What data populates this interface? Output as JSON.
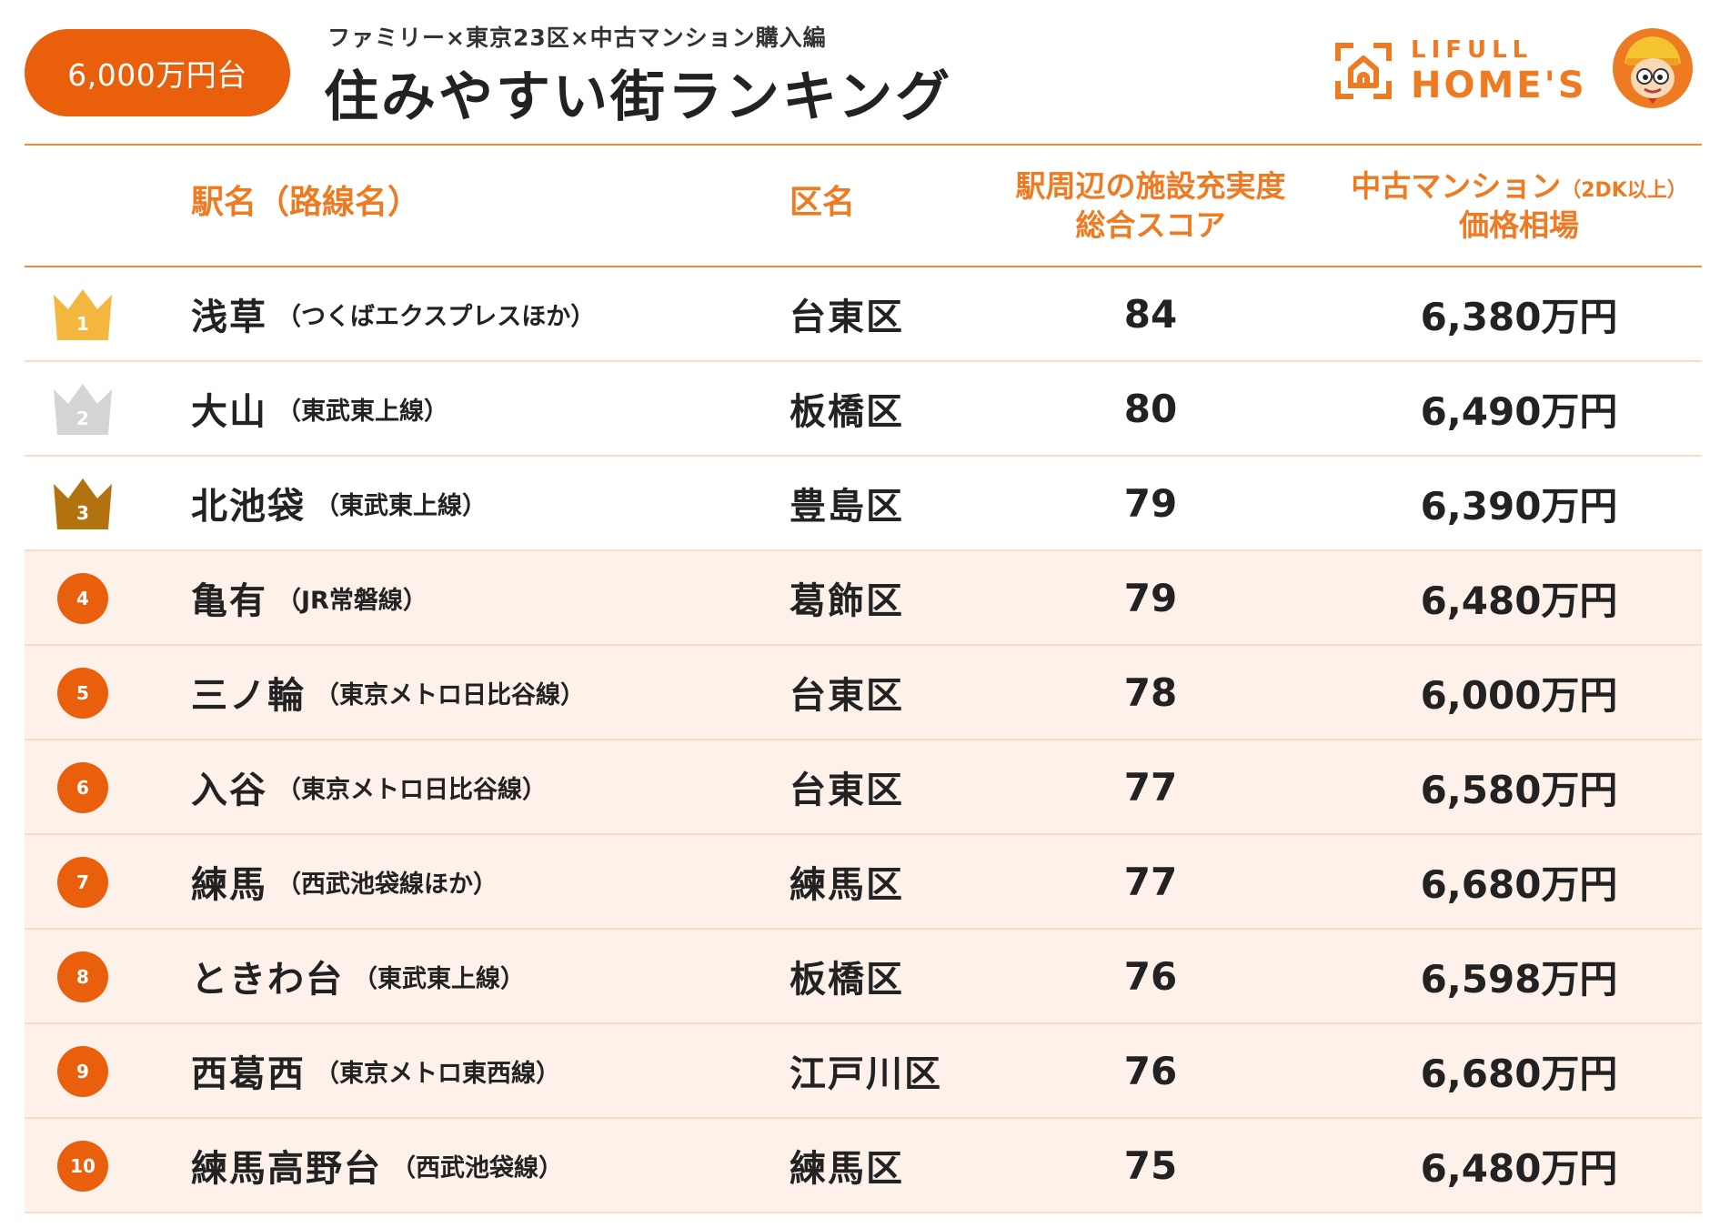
{
  "header": {
    "price_badge": "6,000万円台",
    "subtitle": "ファミリー×東京23区×中古マンション購入編",
    "title": "住みやすい街ランキング",
    "logo_line1": "LIFULL",
    "logo_line2": "HOME'S",
    "logo_icon": "house-frame-icon",
    "mascot_icon": "mascot-icon"
  },
  "colors": {
    "accent": "#e95f0b",
    "header_text": "#ee7a22",
    "row_tint": "#fdf1ea",
    "gold": "#f3b63f",
    "silver": "#d4d4d4",
    "bronze": "#b1720f"
  },
  "table": {
    "columns": {
      "station": "駅名（路線名）",
      "ward": "区名",
      "score_line1": "駅周辺の施設充実度",
      "score_line2": "総合スコア",
      "price_line1": "中古マンション",
      "price_line1_small": "（2DK以上）",
      "price_line2": "価格相場"
    },
    "rows": [
      {
        "rank": "1",
        "rank_style": "gold-crown",
        "station": "浅草",
        "line": "（つくばエクスプレスほか）",
        "ward": "台東区",
        "score": "84",
        "price": "6,380万円"
      },
      {
        "rank": "2",
        "rank_style": "silver-crown",
        "station": "大山",
        "line": "（東武東上線）",
        "ward": "板橋区",
        "score": "80",
        "price": "6,490万円"
      },
      {
        "rank": "3",
        "rank_style": "bronze-crown",
        "station": "北池袋",
        "line": "（東武東上線）",
        "ward": "豊島区",
        "score": "79",
        "price": "6,390万円"
      },
      {
        "rank": "4",
        "rank_style": "circle",
        "station": "亀有",
        "line": "（JR常磐線）",
        "ward": "葛飾区",
        "score": "79",
        "price": "6,480万円"
      },
      {
        "rank": "5",
        "rank_style": "circle",
        "station": "三ノ輪",
        "line": "（東京メトロ日比谷線）",
        "ward": "台東区",
        "score": "78",
        "price": "6,000万円"
      },
      {
        "rank": "6",
        "rank_style": "circle",
        "station": "入谷",
        "line": "（東京メトロ日比谷線）",
        "ward": "台東区",
        "score": "77",
        "price": "6,580万円"
      },
      {
        "rank": "7",
        "rank_style": "circle",
        "station": "練馬",
        "line": "（西武池袋線ほか）",
        "ward": "練馬区",
        "score": "77",
        "price": "6,680万円"
      },
      {
        "rank": "8",
        "rank_style": "circle",
        "station": "ときわ台",
        "line": "（東武東上線）",
        "ward": "板橋区",
        "score": "76",
        "price": "6,598万円"
      },
      {
        "rank": "9",
        "rank_style": "circle",
        "station": "西葛西",
        "line": "（東京メトロ東西線）",
        "ward": "江戸川区",
        "score": "76",
        "price": "6,680万円"
      },
      {
        "rank": "10",
        "rank_style": "circle",
        "station": "練馬高野台",
        "line": "（西武池袋線）",
        "ward": "練馬区",
        "score": "75",
        "price": "6,480万円"
      }
    ]
  }
}
